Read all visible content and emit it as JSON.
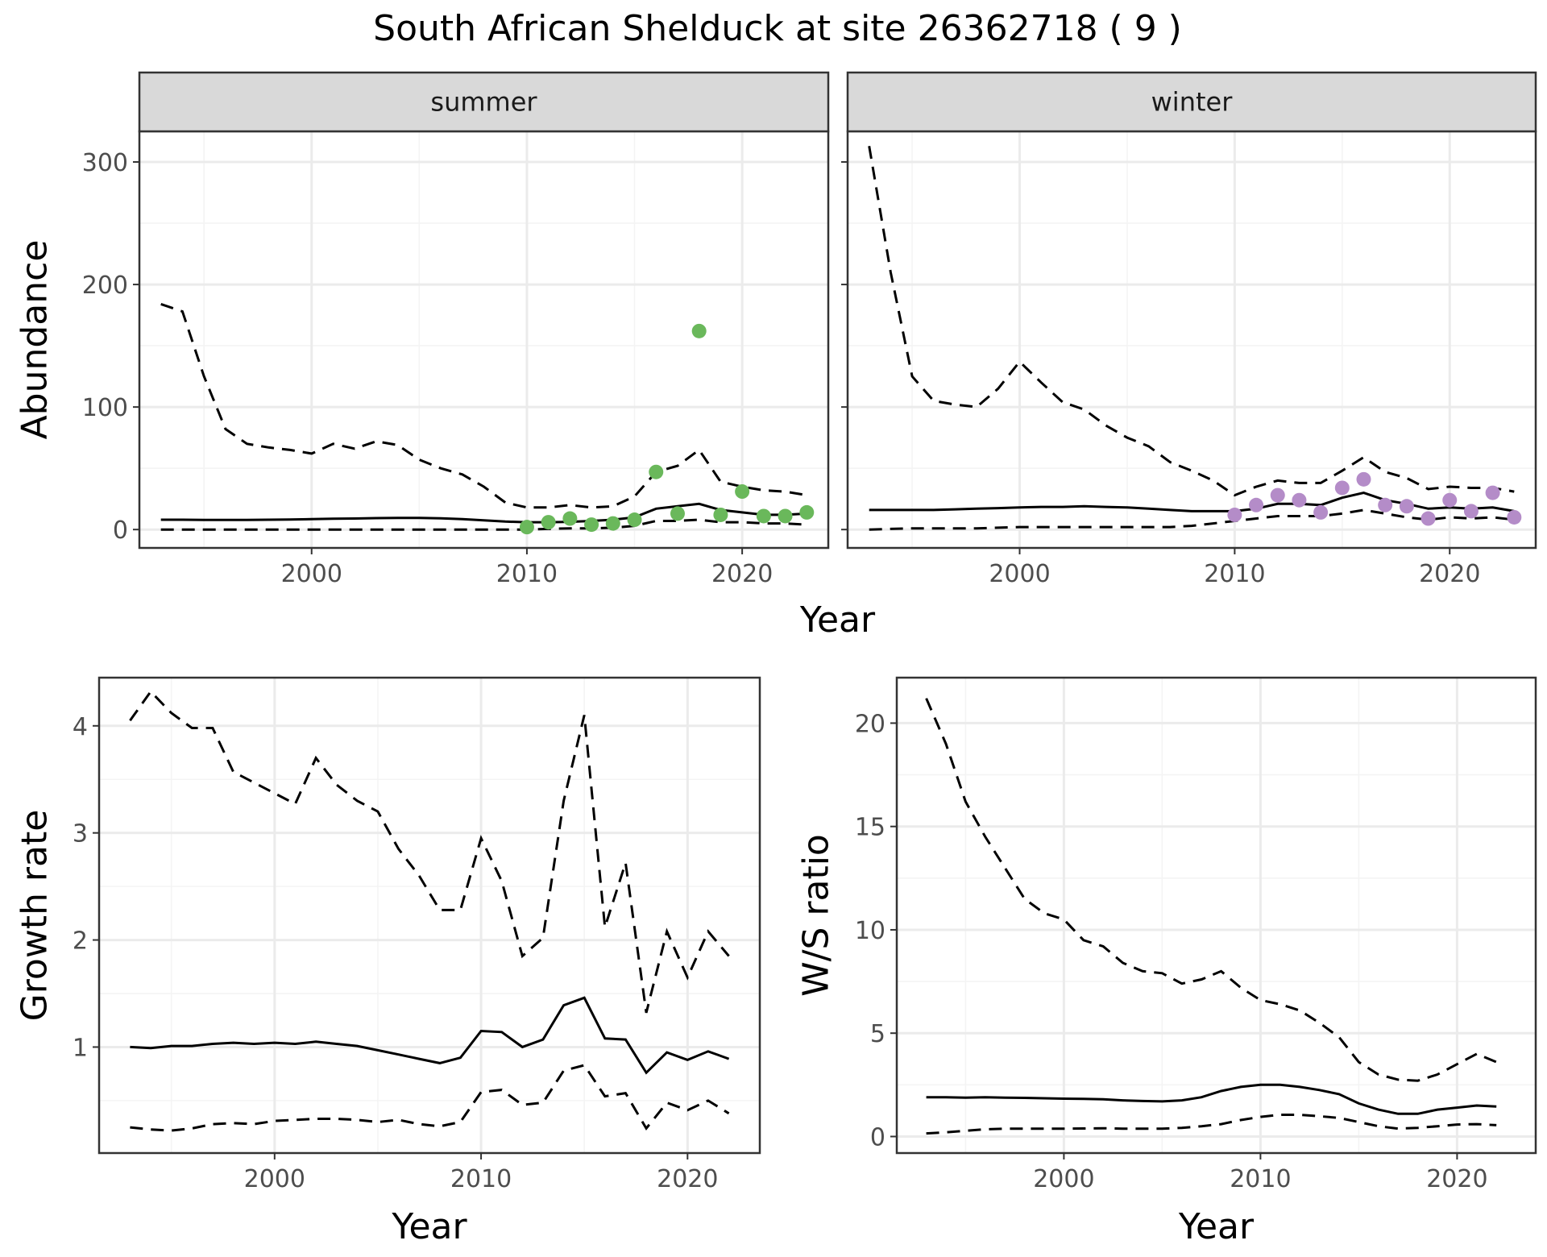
{
  "title": "South African Shelduck at site 26362718 ( 9 )",
  "colors": {
    "summer_points": "#6ab85b",
    "winter_points": "#b48cc8",
    "line": "#000000",
    "strip": "#d9d9d9"
  },
  "chart_data": [
    {
      "type": "line",
      "facet": "summer",
      "xlabel": "Year",
      "ylabel": "Abundance",
      "xlim": [
        1992,
        2024
      ],
      "ylim": [
        -15,
        325
      ],
      "x_ticks": [
        2000,
        2010,
        2020
      ],
      "y_ticks": [
        0,
        100,
        200,
        300
      ],
      "grid": true,
      "series": [
        {
          "role": "mean",
          "line_style": "solid",
          "x": [
            1993,
            1994,
            1995,
            1996,
            1997,
            1998,
            1999,
            2000,
            2001,
            2002,
            2003,
            2004,
            2005,
            2006,
            2007,
            2008,
            2009,
            2010,
            2011,
            2012,
            2013,
            2014,
            2015,
            2016,
            2017,
            2018,
            2019,
            2020,
            2021,
            2022,
            2023
          ],
          "y": [
            8,
            8,
            7.8,
            7.8,
            7.8,
            8,
            8.2,
            8.5,
            8.8,
            9,
            9.3,
            9.5,
            9.5,
            9.2,
            8.5,
            7.5,
            6.5,
            6,
            6,
            6.3,
            7,
            8,
            10,
            17,
            19,
            21,
            16,
            14,
            12,
            12,
            13
          ]
        },
        {
          "role": "upper",
          "line_style": "dashed",
          "x": [
            1993,
            1994,
            1995,
            1996,
            1997,
            1998,
            1999,
            2000,
            2001,
            2002,
            2003,
            2004,
            2005,
            2006,
            2007,
            2008,
            2009,
            2010,
            2011,
            2012,
            2013,
            2014,
            2015,
            2016,
            2017,
            2018,
            2019,
            2020,
            2021,
            2022,
            2023
          ],
          "y": [
            184,
            178,
            125,
            82,
            70,
            67,
            65,
            62,
            70,
            66,
            72,
            69,
            57,
            50,
            45,
            35,
            22,
            18,
            18,
            20,
            18,
            19,
            27,
            47,
            52,
            65,
            39,
            35,
            32,
            31,
            28
          ]
        },
        {
          "role": "lower",
          "line_style": "dashed",
          "x": [
            1993,
            1994,
            1995,
            1996,
            1997,
            1998,
            1999,
            2000,
            2001,
            2002,
            2003,
            2004,
            2005,
            2006,
            2007,
            2008,
            2009,
            2010,
            2011,
            2012,
            2013,
            2014,
            2015,
            2016,
            2017,
            2018,
            2019,
            2020,
            2021,
            2022,
            2023
          ],
          "y": [
            0,
            0,
            0,
            0,
            0,
            0,
            0,
            0,
            0,
            0,
            0,
            0,
            0,
            0,
            0,
            0,
            0,
            0,
            0.5,
            1,
            1,
            1.5,
            3,
            7,
            7,
            8,
            6,
            6,
            5,
            5,
            4
          ]
        }
      ],
      "points": {
        "x": [
          2010,
          2011,
          2012,
          2013,
          2014,
          2015,
          2016,
          2017,
          2018,
          2019,
          2020,
          2021,
          2022,
          2023
        ],
        "y": [
          2,
          6,
          9,
          4,
          5,
          8,
          47,
          13,
          162,
          12,
          31,
          11,
          11,
          14
        ]
      }
    },
    {
      "type": "line",
      "facet": "winter",
      "xlabel": "Year",
      "ylabel": "Abundance",
      "xlim": [
        1992,
        2024
      ],
      "ylim": [
        -15,
        325
      ],
      "x_ticks": [
        2000,
        2010,
        2020
      ],
      "y_ticks": [
        0,
        100,
        200,
        300
      ],
      "grid": true,
      "series": [
        {
          "role": "mean",
          "line_style": "solid",
          "x": [
            1993,
            1994,
            1995,
            1996,
            1997,
            1998,
            1999,
            2000,
            2001,
            2002,
            2003,
            2004,
            2005,
            2006,
            2007,
            2008,
            2009,
            2010,
            2011,
            2012,
            2013,
            2014,
            2015,
            2016,
            2017,
            2018,
            2019,
            2020,
            2021,
            2022,
            2023
          ],
          "y": [
            16,
            16,
            16,
            16,
            16.5,
            17,
            17.5,
            18,
            18.5,
            18.5,
            19,
            18.5,
            18,
            17,
            16,
            15,
            15,
            15,
            17,
            21,
            21,
            20,
            26,
            30,
            24,
            21,
            17,
            18,
            17,
            18,
            15
          ]
        },
        {
          "role": "upper",
          "line_style": "dashed",
          "x": [
            1993,
            1994,
            1995,
            1996,
            1997,
            1998,
            1999,
            2000,
            2001,
            2002,
            2003,
            2004,
            2005,
            2006,
            2007,
            2008,
            2009,
            2010,
            2011,
            2012,
            2013,
            2014,
            2015,
            2016,
            2017,
            2018,
            2019,
            2020,
            2021,
            2022,
            2023
          ],
          "y": [
            313,
            210,
            125,
            105,
            102,
            100,
            115,
            137,
            120,
            104,
            98,
            85,
            75,
            68,
            55,
            48,
            40,
            28,
            35,
            40,
            38,
            38,
            48,
            59,
            47,
            42,
            33,
            35,
            34,
            34,
            31
          ]
        },
        {
          "role": "lower",
          "line_style": "dashed",
          "x": [
            1993,
            1994,
            1995,
            1996,
            1997,
            1998,
            1999,
            2000,
            2001,
            2002,
            2003,
            2004,
            2005,
            2006,
            2007,
            2008,
            2009,
            2010,
            2011,
            2012,
            2013,
            2014,
            2015,
            2016,
            2017,
            2018,
            2019,
            2020,
            2021,
            2022,
            2023
          ],
          "y": [
            0,
            0.5,
            1,
            1,
            1,
            1,
            1.5,
            2,
            2,
            2,
            2,
            2,
            2,
            2,
            2,
            3,
            5,
            7,
            9,
            11,
            11,
            11,
            13,
            16,
            13,
            10,
            8,
            10,
            9,
            10,
            8
          ]
        }
      ],
      "points": {
        "x": [
          2010,
          2011,
          2012,
          2013,
          2014,
          2015,
          2016,
          2017,
          2018,
          2019,
          2020,
          2021,
          2022,
          2023
        ],
        "y": [
          12,
          20,
          28,
          24,
          14,
          34,
          41,
          20,
          19,
          9,
          24,
          15,
          30,
          10
        ]
      }
    },
    {
      "type": "line",
      "xlabel": "Year",
      "ylabel": "Growth rate",
      "xlim": [
        1991.5,
        2023.5
      ],
      "ylim": [
        0.01,
        4.45
      ],
      "x_ticks": [
        2000,
        2010,
        2020
      ],
      "y_ticks": [
        1,
        2,
        3,
        4
      ],
      "grid": true,
      "series": [
        {
          "role": "mean",
          "line_style": "solid",
          "x": [
            1993,
            1994,
            1995,
            1996,
            1997,
            1998,
            1999,
            2000,
            2001,
            2002,
            2003,
            2004,
            2005,
            2006,
            2007,
            2008,
            2009,
            2010,
            2011,
            2012,
            2013,
            2014,
            2015,
            2016,
            2017,
            2018,
            2019,
            2020,
            2021,
            2022
          ],
          "y": [
            1.0,
            0.99,
            1.01,
            1.01,
            1.03,
            1.04,
            1.03,
            1.04,
            1.03,
            1.05,
            1.03,
            1.01,
            0.97,
            0.93,
            0.89,
            0.85,
            0.9,
            1.15,
            1.14,
            1.0,
            1.07,
            1.39,
            1.46,
            1.08,
            1.07,
            0.76,
            0.95,
            0.88,
            0.96,
            0.89
          ]
        },
        {
          "role": "upper",
          "line_style": "dashed",
          "x": [
            1993,
            1994,
            1995,
            1996,
            1997,
            1998,
            1999,
            2000,
            2001,
            2002,
            2003,
            2004,
            2005,
            2006,
            2007,
            2008,
            2009,
            2010,
            2011,
            2012,
            2013,
            2014,
            2015,
            2016,
            2017,
            2018,
            2019,
            2020,
            2021,
            2022
          ],
          "y": [
            4.05,
            4.32,
            4.12,
            3.98,
            3.98,
            3.57,
            3.47,
            3.37,
            3.27,
            3.7,
            3.45,
            3.3,
            3.2,
            2.85,
            2.6,
            2.28,
            2.28,
            2.95,
            2.55,
            1.85,
            2.02,
            3.3,
            4.1,
            2.12,
            2.72,
            1.32,
            2.08,
            1.65,
            2.08,
            1.85
          ]
        },
        {
          "role": "lower",
          "line_style": "dashed",
          "x": [
            1993,
            1994,
            1995,
            1996,
            1997,
            1998,
            1999,
            2000,
            2001,
            2002,
            2003,
            2004,
            2005,
            2006,
            2007,
            2008,
            2009,
            2010,
            2011,
            2012,
            2013,
            2014,
            2015,
            2016,
            2017,
            2018,
            2019,
            2020,
            2021,
            2022
          ],
          "y": [
            0.25,
            0.23,
            0.22,
            0.24,
            0.28,
            0.29,
            0.28,
            0.31,
            0.32,
            0.33,
            0.33,
            0.32,
            0.3,
            0.32,
            0.28,
            0.26,
            0.3,
            0.58,
            0.6,
            0.46,
            0.48,
            0.78,
            0.83,
            0.54,
            0.57,
            0.24,
            0.48,
            0.41,
            0.5,
            0.38
          ]
        }
      ]
    },
    {
      "type": "line",
      "xlabel": "Year",
      "ylabel": "W/S ratio",
      "xlim": [
        1991.5,
        2024
      ],
      "ylim": [
        -0.8,
        22.2
      ],
      "x_ticks": [
        2000,
        2010,
        2020
      ],
      "y_ticks": [
        0,
        5,
        10,
        15,
        20
      ],
      "grid": true,
      "series": [
        {
          "role": "mean",
          "line_style": "solid",
          "x": [
            1993,
            1994,
            1995,
            1996,
            1997,
            1998,
            1999,
            2000,
            2001,
            2002,
            2003,
            2004,
            2005,
            2006,
            2007,
            2008,
            2009,
            2010,
            2011,
            2012,
            2013,
            2014,
            2015,
            2016,
            2017,
            2018,
            2019,
            2020,
            2021,
            2022
          ],
          "y": [
            1.9,
            1.9,
            1.88,
            1.9,
            1.88,
            1.87,
            1.85,
            1.83,
            1.82,
            1.8,
            1.75,
            1.72,
            1.7,
            1.75,
            1.9,
            2.2,
            2.4,
            2.5,
            2.5,
            2.4,
            2.25,
            2.05,
            1.6,
            1.3,
            1.1,
            1.1,
            1.3,
            1.4,
            1.5,
            1.45
          ]
        },
        {
          "role": "upper",
          "line_style": "dashed",
          "x": [
            1993,
            1994,
            1995,
            1996,
            1997,
            1998,
            1999,
            2000,
            2001,
            2002,
            2003,
            2004,
            2005,
            2006,
            2007,
            2008,
            2009,
            2010,
            2011,
            2012,
            2013,
            2014,
            2015,
            2016,
            2017,
            2018,
            2019,
            2020,
            2021,
            2022
          ],
          "y": [
            21.2,
            19,
            16.2,
            14.5,
            13,
            11.5,
            10.8,
            10.5,
            9.5,
            9.2,
            8.4,
            8.0,
            7.9,
            7.4,
            7.6,
            8.0,
            7.2,
            6.6,
            6.4,
            6.1,
            5.5,
            4.8,
            3.6,
            3.0,
            2.75,
            2.7,
            3.0,
            3.5,
            4.0,
            3.6
          ]
        },
        {
          "role": "lower",
          "line_style": "dashed",
          "x": [
            1993,
            1994,
            1995,
            1996,
            1997,
            1998,
            1999,
            2000,
            2001,
            2002,
            2003,
            2004,
            2005,
            2006,
            2007,
            2008,
            2009,
            2010,
            2011,
            2012,
            2013,
            2014,
            2015,
            2016,
            2017,
            2018,
            2019,
            2020,
            2021,
            2022
          ],
          "y": [
            0.15,
            0.2,
            0.28,
            0.35,
            0.38,
            0.38,
            0.38,
            0.38,
            0.39,
            0.4,
            0.38,
            0.38,
            0.38,
            0.42,
            0.5,
            0.6,
            0.8,
            0.95,
            1.05,
            1.05,
            0.98,
            0.9,
            0.7,
            0.5,
            0.38,
            0.42,
            0.5,
            0.58,
            0.6,
            0.55
          ]
        }
      ]
    }
  ]
}
